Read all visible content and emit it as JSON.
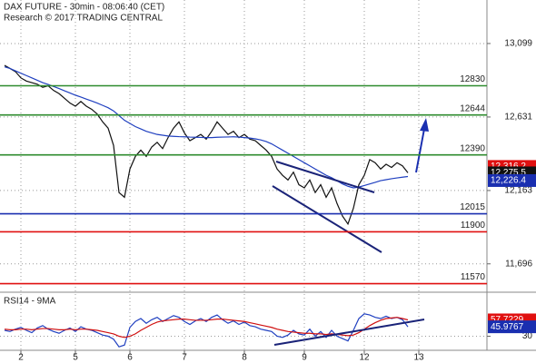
{
  "chart_data": {
    "type": "line",
    "title": "DAX FUTURE - 30min - 08:06:40 (CET)",
    "subtitle": "Research © 2017 TRADING CENTRAL",
    "panel_label": "RSI14 - 9MA",
    "categories": [
      null,
      null,
      null,
      "2",
      null,
      null,
      null,
      null,
      null,
      null,
      null,
      null,
      null,
      "5",
      null,
      null,
      null,
      null,
      null,
      null,
      null,
      null,
      null,
      "6",
      null,
      null,
      null,
      null,
      null,
      null,
      null,
      null,
      null,
      "7",
      null,
      null,
      null,
      null,
      null,
      null,
      null,
      null,
      null,
      null,
      "8",
      null,
      null,
      null,
      null,
      null,
      null,
      null,
      null,
      null,
      null,
      "9",
      null,
      null,
      null,
      null,
      null,
      null,
      null,
      null,
      null,
      null,
      "12",
      null,
      null,
      null,
      null,
      null,
      null,
      null,
      null,
      null,
      "13"
    ],
    "grid": true,
    "ylim": [
      11527,
      13376
    ],
    "yticks": [
      {
        "value": 13099,
        "label": "13,099"
      },
      {
        "value": 12631,
        "label": "12,631"
      },
      {
        "value": 12163,
        "label": "12,163"
      },
      {
        "value": 11696,
        "label": "11,696"
      }
    ],
    "y2lim": [
      0,
      100
    ],
    "y2ticks": [
      30
    ],
    "levels": [
      12830,
      12644,
      12390,
      12015,
      11900,
      11570
    ],
    "level_colors": [
      "#2e8b2e",
      "#2e8b2e",
      "#2e8b2e",
      "#1a2fb0",
      "#e01010",
      "#e01010"
    ],
    "series": [
      {
        "name": "Price",
        "color": "#111111",
        "values": [
          12960,
          12940,
          12920,
          12880,
          12860,
          12850,
          12840,
          12820,
          12830,
          12800,
          12780,
          12750,
          12720,
          12700,
          12730,
          12700,
          12680,
          12650,
          12600,
          12560,
          12450,
          12150,
          12120,
          12300,
          12380,
          12420,
          12380,
          12440,
          12470,
          12430,
          12500,
          12560,
          12600,
          12530,
          12480,
          12500,
          12520,
          12490,
          12540,
          12600,
          12560,
          12520,
          12540,
          12500,
          12520,
          12490,
          12480,
          12450,
          12420,
          12380,
          12300,
          12260,
          12230,
          12280,
          12200,
          12180,
          12230,
          12150,
          12200,
          12120,
          12180,
          12080,
          12000,
          11950,
          12050,
          12200,
          12260,
          12360,
          12340,
          12300,
          12330,
          12310,
          12340,
          12320,
          12276,
          null,
          null
        ]
      },
      {
        "name": "MA",
        "color": "#2040c0",
        "values": [
          12950,
          12940,
          12925,
          12910,
          12895,
          12880,
          12865,
          12850,
          12838,
          12825,
          12812,
          12798,
          12784,
          12770,
          12758,
          12745,
          12733,
          12720,
          12705,
          12690,
          12670,
          12640,
          12610,
          12590,
          12570,
          12555,
          12540,
          12530,
          12520,
          12515,
          12510,
          12508,
          12506,
          12505,
          12503,
          12502,
          12501,
          12500,
          12500,
          12502,
          12503,
          12504,
          12505,
          12503,
          12500,
          12497,
          12492,
          12485,
          12475,
          12460,
          12440,
          12420,
          12400,
          12380,
          12360,
          12340,
          12320,
          12300,
          12280,
          12260,
          12245,
          12225,
          12205,
          12190,
          12180,
          12185,
          12195,
          12205,
          12215,
          12226,
          12232,
          12238,
          12243,
          12248,
          12252,
          null,
          null
        ]
      },
      {
        "name": "RSI14",
        "color": "#2040c0",
        "axis": "y2",
        "values": [
          40,
          38,
          42,
          45,
          40,
          36,
          44,
          48,
          42,
          38,
          35,
          40,
          44,
          38,
          46,
          42,
          40,
          36,
          32,
          30,
          25,
          12,
          15,
          45,
          55,
          60,
          52,
          58,
          62,
          55,
          60,
          65,
          62,
          55,
          50,
          56,
          60,
          55,
          62,
          66,
          58,
          52,
          56,
          50,
          54,
          48,
          46,
          42,
          40,
          38,
          30,
          28,
          32,
          40,
          34,
          32,
          42,
          30,
          38,
          28,
          40,
          30,
          26,
          22,
          40,
          60,
          68,
          66,
          62,
          60,
          64,
          60,
          62,
          58,
          46,
          null,
          null
        ]
      },
      {
        "name": "9MA",
        "color": "#d01010",
        "axis": "y2",
        "values": [
          42,
          41,
          41,
          42,
          42,
          41,
          42,
          43,
          43,
          42,
          41,
          41,
          42,
          41,
          42,
          42,
          41,
          40,
          38,
          36,
          34,
          30,
          28,
          30,
          34,
          40,
          45,
          50,
          54,
          56,
          57,
          58,
          59,
          59,
          58,
          57,
          57,
          57,
          58,
          59,
          59,
          58,
          57,
          56,
          55,
          53,
          51,
          49,
          47,
          45,
          42,
          40,
          38,
          37,
          36,
          35,
          35,
          34,
          34,
          33,
          34,
          33,
          32,
          31,
          32,
          36,
          42,
          48,
          53,
          57,
          60,
          61,
          62,
          60,
          57.7,
          null,
          null
        ]
      }
    ],
    "tags": [
      {
        "value": 12316.2,
        "label": "12,316.2",
        "color": "#e01010"
      },
      {
        "value": 12275.5,
        "label": "12,275.5",
        "color": "#111111"
      },
      {
        "value": 12226.4,
        "label": "12,226.4",
        "color": "#1a2fb0"
      }
    ],
    "y2tags": [
      {
        "value": 57.7229,
        "color": "#e01010"
      },
      {
        "value": 45.9767,
        "color": "#1a2fb0"
      }
    ]
  }
}
